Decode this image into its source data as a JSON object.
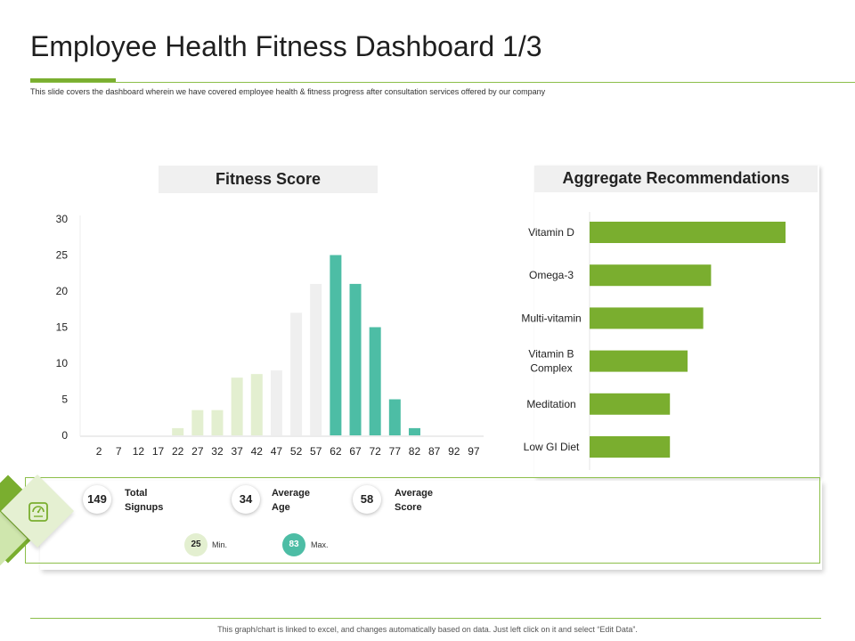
{
  "header": {
    "title": "Employee Health Fitness Dashboard 1/3",
    "subtitle": "This slide covers the dashboard wherein we have covered employee health & fitness progress after consultation services offered by our company"
  },
  "fitness_panel": {
    "title": "Fitness Score"
  },
  "recommendations_panel": {
    "title": "Aggregate Recommendations"
  },
  "stats": {
    "total_signups": {
      "value": "149",
      "label_line1": "Total",
      "label_line2": "Signups"
    },
    "average_age": {
      "value": "34",
      "label_line1": "Average",
      "label_line2": "Age"
    },
    "average_score": {
      "value": "58",
      "label_line1": "Average",
      "label_line2": "Score"
    },
    "min": {
      "value": "25",
      "label": "Min."
    },
    "max": {
      "value": "83",
      "label": "Max."
    }
  },
  "footer": {
    "text": "This graph/chart is linked to excel, and changes automatically based on data. Just left click on it and select “Edit Data”."
  },
  "colors": {
    "accent_green": "#7aae2f",
    "light_green": "#e3efd0",
    "light_gray": "#efefef",
    "teal": "#4dbda5"
  },
  "icons": {
    "stats_icon": "scale-icon"
  },
  "chart_data": [
    {
      "type": "bar",
      "title": "Fitness Score",
      "categories": [
        "2",
        "7",
        "12",
        "17",
        "22",
        "27",
        "32",
        "37",
        "42",
        "47",
        "52",
        "57",
        "62",
        "67",
        "72",
        "77",
        "82",
        "87",
        "92",
        "97"
      ],
      "values": [
        0,
        0,
        0,
        0,
        1,
        3.5,
        3.5,
        8,
        8.5,
        9,
        17,
        21,
        25,
        21,
        15,
        5,
        1,
        0,
        0,
        0
      ],
      "bar_colors": [
        "#e3efd0",
        "#e3efd0",
        "#e3efd0",
        "#e3efd0",
        "#e3efd0",
        "#e3efd0",
        "#e3efd0",
        "#e3efd0",
        "#e3efd0",
        "#efefef",
        "#efefef",
        "#efefef",
        "#4dbda5",
        "#4dbda5",
        "#4dbda5",
        "#4dbda5",
        "#4dbda5",
        "#4dbda5",
        "#4dbda5",
        "#4dbda5"
      ],
      "yticks": [
        0,
        5,
        10,
        15,
        20,
        25,
        30
      ],
      "ylim": [
        0,
        30
      ],
      "grid": false
    },
    {
      "type": "bar",
      "orientation": "horizontal",
      "title": "Aggregate Recommendations",
      "categories": [
        "Vitamin D",
        "Omega-3",
        "Multi-vitamin",
        "Vitamin B Complex",
        "Meditation",
        "Low GI Diet"
      ],
      "category_lines": [
        [
          "Vitamin D"
        ],
        [
          "Omega-3"
        ],
        [
          "Multi-vitamin"
        ],
        [
          "Vitamin B",
          "Complex"
        ],
        [
          "Meditation"
        ],
        [
          "Low GI Diet"
        ]
      ],
      "values": [
        100,
        62,
        58,
        50,
        41,
        41
      ],
      "xlim": [
        0,
        100
      ],
      "color": "#7aae2f",
      "grid": false
    }
  ]
}
